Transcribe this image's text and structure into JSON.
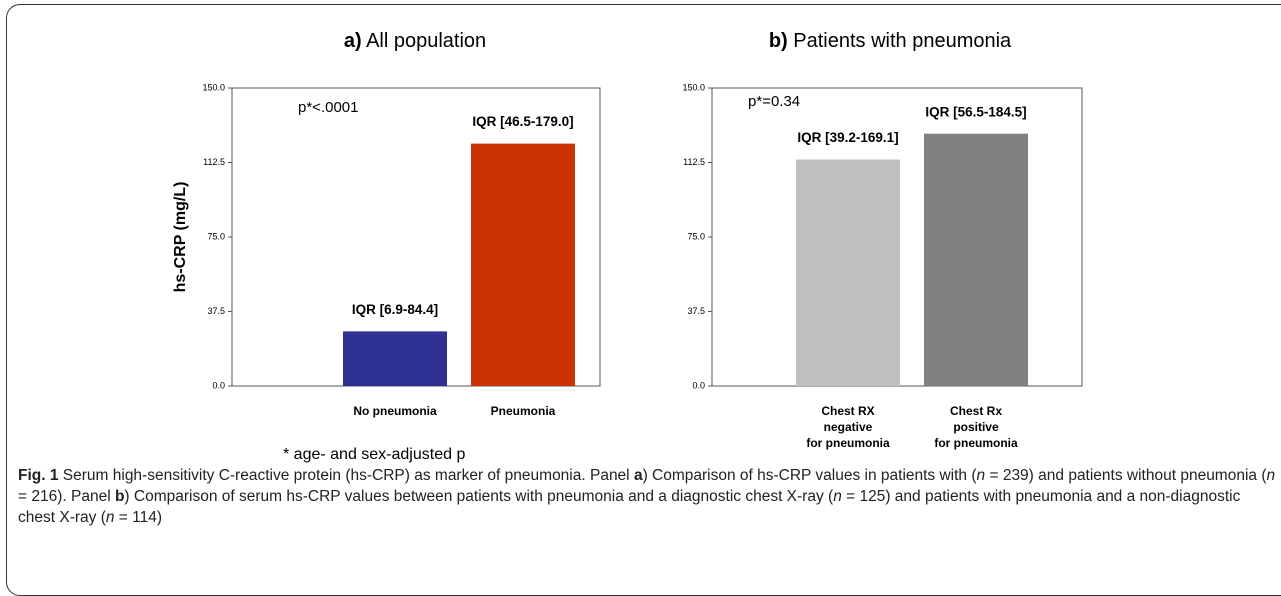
{
  "chart_data": [
    {
      "type": "bar",
      "title_label": "a)",
      "title": "All population",
      "ylabel": "hs-CRP (mg/L)",
      "categories": [
        [
          "No pneumonia"
        ],
        [
          "Pneumonia"
        ]
      ],
      "values": [
        27.5,
        122
      ],
      "value_labels": [
        "IQR [6.9-84.4]",
        "IQR [46.5-179.0]"
      ],
      "colors": [
        "#2e3192",
        "#cc3300"
      ],
      "ylim": [
        0,
        150
      ],
      "yticks": [
        {
          "value": 0,
          "label": "0.0"
        },
        37.5,
        {
          "value": 75,
          "label": "75.0"
        },
        112.5,
        {
          "value": 150,
          "label": "150.0"
        }
      ],
      "annotation": "p*<.0001",
      "footnote": "* age- and sex-adjusted p"
    },
    {
      "type": "bar",
      "title_label": "b)",
      "title": "Patients with pneumonia",
      "categories": [
        [
          "Chest RX",
          "negative",
          "for pneumonia"
        ],
        [
          "Chest Rx",
          "positive",
          "for pneumonia"
        ]
      ],
      "values": [
        114,
        127
      ],
      "value_labels": [
        "IQR [39.2-169.1]",
        "IQR [56.5-184.5]"
      ],
      "colors": [
        "#c0c0c0",
        "#808080"
      ],
      "ylim": [
        0,
        150
      ],
      "yticks": [
        {
          "value": 0,
          "label": "0.0"
        },
        37.5,
        {
          "value": 75,
          "label": "75.0"
        },
        112.5,
        {
          "value": 150,
          "label": "150.0"
        }
      ],
      "annotation": "p*=0.34"
    }
  ],
  "caption": [
    {
      "text": "Fig. 1",
      "style": "b"
    },
    {
      "text": " Serum high-sensitivity C-reactive protein (hs-CRP) as marker of pneumonia. Panel "
    },
    {
      "text": "a",
      "style": "b"
    },
    {
      "text": ") Comparison of hs-CRP values in patients with ("
    },
    {
      "text": "n",
      "style": "i"
    },
    {
      "text": " = 239) and patients without pneumonia ("
    },
    {
      "text": "n",
      "style": "i"
    },
    {
      "text": " = 216). Panel "
    },
    {
      "text": "b",
      "style": "b"
    },
    {
      "text": ") Comparison of serum hs-CRP values between patients with pneumonia and a diagnostic chest X-ray ("
    },
    {
      "text": "n",
      "style": "i"
    },
    {
      "text": " = 125) and patients with pneumonia and a non-diagnostic chest X-ray ("
    },
    {
      "text": "n",
      "style": "i"
    },
    {
      "text": " = 114)"
    }
  ]
}
